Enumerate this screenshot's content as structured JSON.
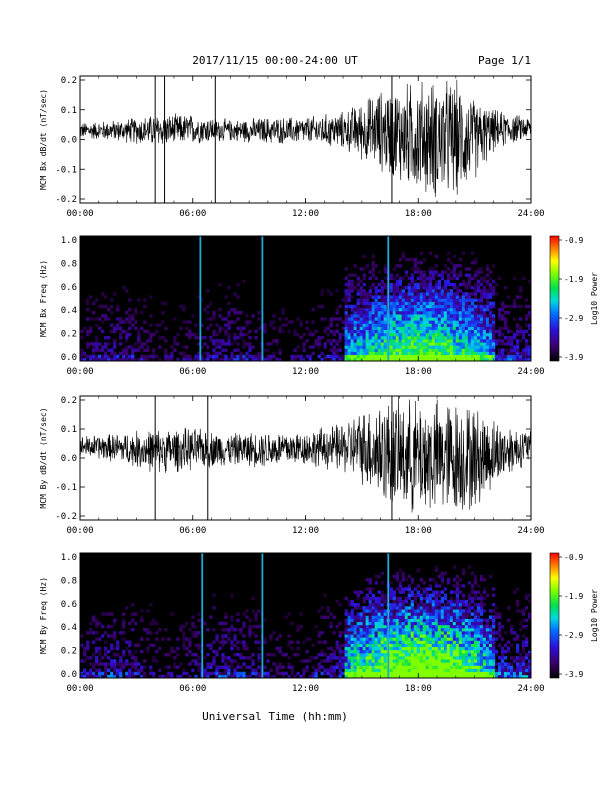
{
  "header": {
    "title": "2017/11/15  00:00-24:00 UT",
    "page": "Page 1/1"
  },
  "x_axis": {
    "tick_labels": [
      "00:00",
      "06:00",
      "12:00",
      "18:00",
      "24:00"
    ],
    "label": "Universal Time (hh:mm)"
  },
  "chart_data": [
    {
      "type": "line",
      "ylabel": "MCM Bx dB/dt (nT/sec)",
      "xlim": [
        0,
        24
      ],
      "ylim": [
        -0.2,
        0.2
      ],
      "y_tick_labels": [
        "0.2",
        "0.1",
        "0.0",
        "-0.1",
        "-0.2"
      ],
      "series": [
        {
          "description": "dense dB/dt trace, quiet before ~14:00, strongly disturbed 14:00-22:00",
          "envelope_hours": [
            0,
            2,
            4,
            6,
            8,
            10,
            12,
            14,
            16,
            17,
            18,
            19,
            20,
            21,
            22,
            23,
            24
          ],
          "envelope_upper": [
            0.06,
            0.07,
            0.09,
            0.09,
            0.07,
            0.08,
            0.08,
            0.1,
            0.18,
            0.2,
            0.22,
            0.22,
            0.22,
            0.15,
            0.11,
            0.09,
            0.08
          ],
          "envelope_lower": [
            0.0,
            -0.01,
            -0.03,
            -0.02,
            -0.01,
            -0.02,
            -0.02,
            -0.04,
            -0.12,
            -0.17,
            -0.2,
            -0.22,
            -0.22,
            -0.15,
            -0.05,
            -0.02,
            0.0
          ],
          "spike_hours": [
            4.0,
            4.5,
            7.2,
            16.6
          ]
        }
      ]
    },
    {
      "type": "heatmap",
      "ylabel": "MCM Bx Freq (Hz)",
      "xlim": [
        0,
        24
      ],
      "ylim": [
        0,
        1.0
      ],
      "y_tick_labels": [
        "1.0",
        "0.8",
        "0.6",
        "0.4",
        "0.2",
        "0.0"
      ],
      "colorbar": {
        "label": "Log10 Power",
        "range": [
          -3.9,
          -0.9
        ],
        "tick_labels": [
          "-0.9",
          "-1.9",
          "-2.9",
          "-3.9"
        ],
        "colormap": "rainbow"
      },
      "noise_scale": 0.9,
      "bright_lines_hours": [
        6.4,
        9.7,
        16.4
      ]
    },
    {
      "type": "line",
      "ylabel": "MCM By dB/dt (nT/sec)",
      "xlim": [
        0,
        24
      ],
      "ylim": [
        -0.2,
        0.2
      ],
      "y_tick_labels": [
        "0.2",
        "0.1",
        "0.0",
        "-0.1",
        "-0.2"
      ],
      "series": [
        {
          "description": "dense dB/dt trace, quiet before ~14:00, strongly disturbed 14:00-23:00",
          "envelope_hours": [
            0,
            2,
            4,
            6,
            8,
            10,
            12,
            14,
            15,
            16,
            17,
            18,
            19,
            20,
            21,
            22,
            23,
            24
          ],
          "envelope_upper": [
            0.08,
            0.09,
            0.11,
            0.11,
            0.09,
            0.1,
            0.1,
            0.13,
            0.18,
            0.22,
            0.22,
            0.22,
            0.22,
            0.22,
            0.2,
            0.15,
            0.12,
            0.1
          ],
          "envelope_lower": [
            0.0,
            -0.02,
            -0.06,
            -0.05,
            -0.03,
            -0.04,
            -0.03,
            -0.06,
            -0.1,
            -0.18,
            -0.2,
            -0.22,
            -0.22,
            -0.22,
            -0.2,
            -0.12,
            -0.06,
            -0.02
          ],
          "spike_hours": [
            4.0,
            6.8,
            16.6
          ]
        }
      ]
    },
    {
      "type": "heatmap",
      "ylabel": "MCM By Freq (Hz)",
      "xlim": [
        0,
        24
      ],
      "ylim": [
        0,
        1.0
      ],
      "y_tick_labels": [
        "1.0",
        "0.8",
        "0.6",
        "0.4",
        "0.2",
        "0.0"
      ],
      "colorbar": {
        "label": "Log10 Power",
        "range": [
          -3.9,
          -0.9
        ],
        "tick_labels": [
          "-0.9",
          "-1.9",
          "-2.9",
          "-3.9"
        ],
        "colormap": "rainbow"
      },
      "noise_scale": 1.15,
      "bright_lines_hours": [
        6.5,
        9.7,
        16.4
      ]
    }
  ]
}
